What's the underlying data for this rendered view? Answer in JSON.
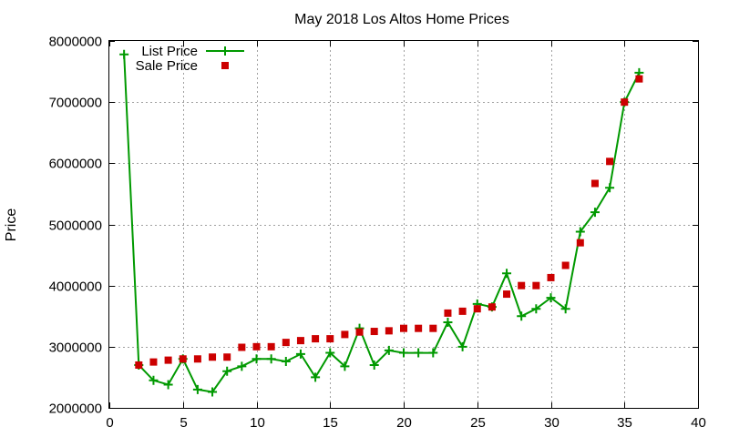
{
  "chart_data": {
    "type": "scatter",
    "title": "May 2018 Los Altos Home Prices",
    "xlabel": "",
    "ylabel": "Price",
    "xlim": [
      0,
      40
    ],
    "ylim": [
      2000000,
      8000000
    ],
    "xticks": [
      0,
      5,
      10,
      15,
      20,
      25,
      30,
      35,
      40
    ],
    "yticks": [
      2000000,
      3000000,
      4000000,
      5000000,
      6000000,
      7000000,
      8000000
    ],
    "xtick_labels": [
      "0",
      "5",
      "10",
      "15",
      "20",
      "25",
      "30",
      "35",
      "40"
    ],
    "ytick_labels": [
      "2000000",
      "3000000",
      "4000000",
      "5000000",
      "6000000",
      "7000000",
      "8000000"
    ],
    "grid": true,
    "legend_position": "top-left",
    "series": [
      {
        "name": "List Price",
        "style": "line+cross",
        "color": "#009900",
        "x": [
          1,
          2,
          3,
          4,
          5,
          6,
          7,
          8,
          9,
          10,
          11,
          12,
          13,
          14,
          15,
          16,
          17,
          18,
          19,
          20,
          21,
          22,
          23,
          24,
          25,
          26,
          27,
          28,
          29,
          30,
          31,
          32,
          33,
          34,
          35,
          36
        ],
        "values": [
          7780000,
          2700000,
          2450000,
          2380000,
          2800000,
          2300000,
          2260000,
          2600000,
          2680000,
          2800000,
          2800000,
          2760000,
          2880000,
          2500000,
          2900000,
          2680000,
          3300000,
          2700000,
          2940000,
          2900000,
          2900000,
          2900000,
          3400000,
          3000000,
          3700000,
          3650000,
          4200000,
          3500000,
          3620000,
          3800000,
          3620000,
          4880000,
          5200000,
          5600000,
          7000000,
          7480000
        ]
      },
      {
        "name": "Sale Price",
        "style": "square",
        "color": "#cc0000",
        "x": [
          2,
          3,
          4,
          5,
          6,
          7,
          8,
          9,
          10,
          11,
          12,
          13,
          14,
          15,
          16,
          17,
          18,
          19,
          20,
          21,
          22,
          23,
          24,
          25,
          26,
          27,
          28,
          29,
          30,
          31,
          32,
          33,
          34,
          35,
          36
        ],
        "values": [
          2700000,
          2750000,
          2780000,
          2800000,
          2800000,
          2830000,
          2830000,
          2990000,
          3000000,
          3000000,
          3070000,
          3100000,
          3130000,
          3130000,
          3200000,
          3240000,
          3250000,
          3260000,
          3300000,
          3300000,
          3300000,
          3550000,
          3580000,
          3620000,
          3650000,
          3860000,
          4000000,
          4000000,
          4130000,
          4330000,
          4700000,
          5670000,
          6030000,
          7000000,
          7380000
        ]
      }
    ]
  }
}
